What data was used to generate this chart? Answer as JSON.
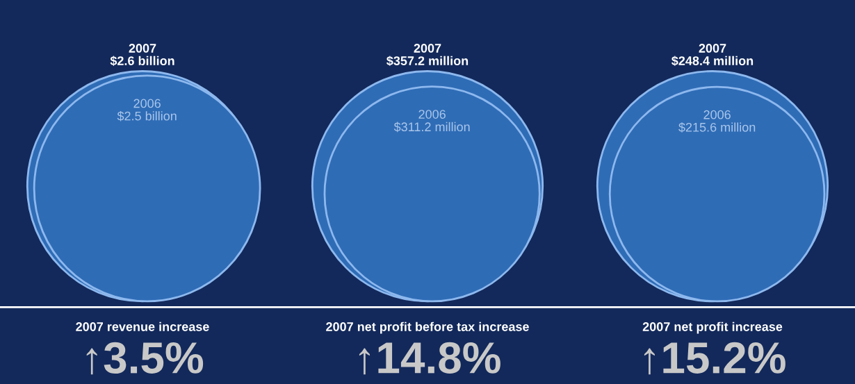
{
  "chart_data": [
    {
      "type": "other",
      "categories": [
        "2007",
        "2006"
      ],
      "values": [
        2.6,
        2.5
      ],
      "value_labels": [
        "$2.6 billion",
        "$2.5 billion"
      ],
      "colors": [
        "#2f6cb6",
        "#2f6cb6"
      ],
      "annotations": [
        "2007 revenue increase",
        "↑3.5%"
      ]
    },
    {
      "type": "other",
      "categories": [
        "2007",
        "2006"
      ],
      "values": [
        357.2,
        311.2
      ],
      "value_labels": [
        "$357.2 million",
        "$311.2 million"
      ],
      "colors": [
        "#2f6cb6",
        "#2f6cb6"
      ],
      "annotations": [
        "2007 net profit before tax increase",
        "↑14.8%"
      ]
    },
    {
      "type": "other",
      "categories": [
        "2007",
        "2006"
      ],
      "values": [
        248.4,
        215.6
      ],
      "value_labels": [
        "$248.4 million",
        "$215.6 million"
      ],
      "colors": [
        "#2f6cb6",
        "#2f6cb6"
      ],
      "annotations": [
        "2007 net profit increase",
        "↑15.2%"
      ]
    }
  ]
}
